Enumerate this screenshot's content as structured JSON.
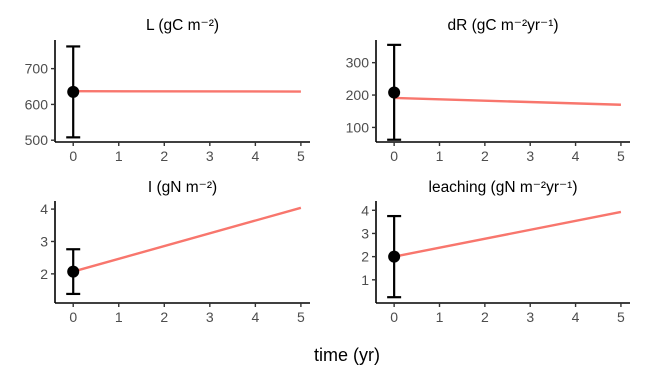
{
  "chart_data": [
    {
      "type": "line",
      "title": "L (gC m⁻²)",
      "x": [
        0,
        5
      ],
      "series": [
        {
          "values": [
            637,
            636
          ]
        }
      ],
      "observation": {
        "x": 0,
        "y": 635,
        "lower": 508,
        "upper": 762
      },
      "xlim": [
        -0.4,
        5.2
      ],
      "ylim": [
        495,
        780
      ],
      "yticks": [
        500,
        600,
        700
      ],
      "xticks": [
        0,
        1,
        2,
        3,
        4,
        5
      ],
      "grid": false
    },
    {
      "type": "line",
      "title": "dR (gC m⁻²yr⁻¹)",
      "x": [
        0,
        5
      ],
      "series": [
        {
          "values": [
            191,
            170
          ]
        }
      ],
      "observation": {
        "x": 0,
        "y": 208,
        "lower": 62,
        "upper": 355
      },
      "xlim": [
        -0.4,
        5.2
      ],
      "ylim": [
        55,
        370
      ],
      "yticks": [
        100,
        200,
        300
      ],
      "xticks": [
        0,
        1,
        2,
        3,
        4,
        5
      ],
      "grid": false
    },
    {
      "type": "line",
      "title": "I (gN m⁻²)",
      "x": [
        0,
        5
      ],
      "series": [
        {
          "values": [
            2.07,
            4.04
          ]
        }
      ],
      "observation": {
        "x": 0,
        "y": 2.07,
        "lower": 1.38,
        "upper": 2.76
      },
      "xlim": [
        -0.4,
        5.2
      ],
      "ylim": [
        1.1,
        4.25
      ],
      "yticks": [
        2,
        3,
        4
      ],
      "xticks": [
        0,
        1,
        2,
        3,
        4,
        5
      ],
      "grid": false
    },
    {
      "type": "line",
      "title": "leaching (gN m⁻²yr⁻¹)",
      "x": [
        0,
        5
      ],
      "series": [
        {
          "values": [
            2.0,
            3.93
          ]
        }
      ],
      "observation": {
        "x": 0,
        "y": 2.0,
        "lower": 0.25,
        "upper": 3.75
      },
      "xlim": [
        -0.4,
        5.2
      ],
      "ylim": [
        0,
        4.4
      ],
      "yticks": [
        1,
        2,
        3,
        4
      ],
      "xticks": [
        0,
        1,
        2,
        3,
        4,
        5
      ],
      "grid": false
    }
  ],
  "xlabel": "time (yr)",
  "colors": {
    "series": "#f8766d",
    "observation": "#000000",
    "axis": "#000000",
    "tick_text": "#4d4d4d"
  }
}
